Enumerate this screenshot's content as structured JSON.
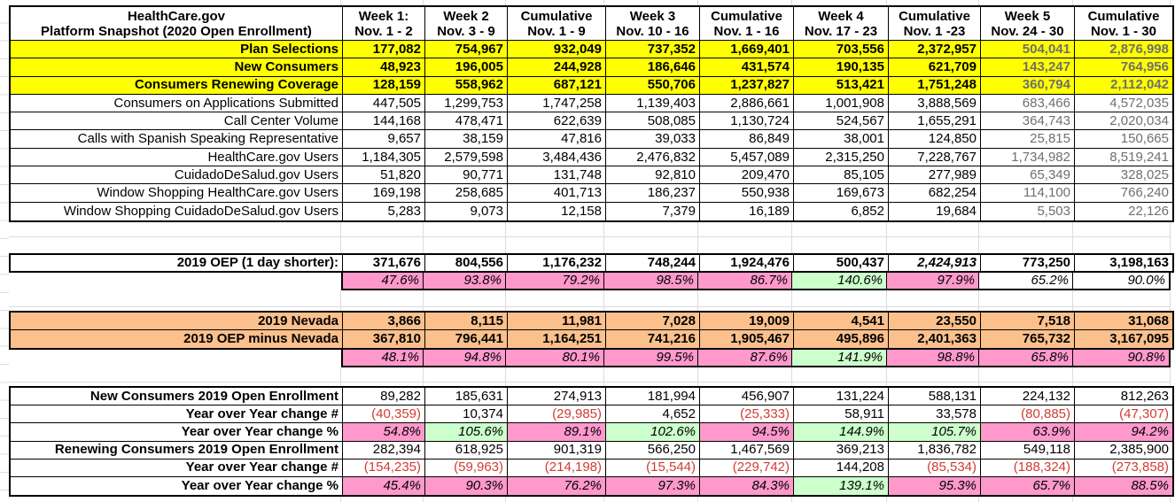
{
  "sheet": {
    "title": {
      "line1": "HealthCare.gov",
      "line2": "Platform Snapshot (2020 Open Enrollment)"
    },
    "columns": [
      {
        "line1": "Week 1:",
        "line2": "Nov. 1 - 2"
      },
      {
        "line1": "Week 2",
        "line2": "Nov. 3 - 9"
      },
      {
        "line1": "Cumulative",
        "line2": "Nov. 1 - 9"
      },
      {
        "line1": "Week 3",
        "line2": "Nov. 10 - 16"
      },
      {
        "line1": "Cumulative",
        "line2": "Nov. 1 - 16"
      },
      {
        "line1": "Week 4",
        "line2": "Nov. 17 - 23"
      },
      {
        "line1": "Cumulative",
        "line2": "Nov. 1 -23"
      },
      {
        "line1": "Week 5",
        "line2": "Nov. 24 - 30"
      },
      {
        "line1": "Cumulative",
        "line2": "Nov. 1 - 30"
      }
    ],
    "snapshot_rows": [
      {
        "label": "Plan Selections",
        "yellow": true,
        "bold": true,
        "values": [
          "177,082",
          "754,967",
          "932,049",
          "737,352",
          "1,669,401",
          "703,556",
          "2,372,957",
          "504,041",
          "2,876,998"
        ]
      },
      {
        "label": "New Consumers",
        "yellow": true,
        "bold": true,
        "values": [
          "48,923",
          "196,005",
          "244,928",
          "186,646",
          "431,574",
          "190,135",
          "621,709",
          "143,247",
          "764,956"
        ]
      },
      {
        "label": "Consumers Renewing Coverage",
        "yellow": true,
        "bold": true,
        "values": [
          "128,159",
          "558,962",
          "687,121",
          "550,706",
          "1,237,827",
          "513,421",
          "1,751,248",
          "360,794",
          "2,112,042"
        ]
      },
      {
        "label": "Consumers on Applications Submitted",
        "yellow": false,
        "bold": false,
        "values": [
          "447,505",
          "1,299,753",
          "1,747,258",
          "1,139,403",
          "2,886,661",
          "1,001,908",
          "3,888,569",
          "683,466",
          "4,572,035"
        ]
      },
      {
        "label": "Call Center Volume",
        "yellow": false,
        "bold": false,
        "values": [
          "144,168",
          "478,471",
          "622,639",
          "508,085",
          "1,130,724",
          "524,567",
          "1,655,291",
          "364,743",
          "2,020,034"
        ]
      },
      {
        "label": "Calls with Spanish Speaking Representative",
        "yellow": false,
        "bold": false,
        "values": [
          "9,657",
          "38,159",
          "47,816",
          "39,033",
          "86,849",
          "38,001",
          "124,850",
          "25,815",
          "150,665"
        ]
      },
      {
        "label": "HealthCare.gov Users",
        "yellow": false,
        "bold": false,
        "values": [
          "1,184,305",
          "2,579,598",
          "3,484,436",
          "2,476,832",
          "5,457,089",
          "2,315,250",
          "7,228,767",
          "1,734,982",
          "8,519,241"
        ]
      },
      {
        "label": "CuidadoDeSalud.gov Users",
        "yellow": false,
        "bold": false,
        "values": [
          "51,820",
          "90,771",
          "131,748",
          "92,810",
          "209,470",
          "85,105",
          "277,989",
          "65,349",
          "328,025"
        ]
      },
      {
        "label": "Window Shopping HealthCare.gov Users",
        "yellow": false,
        "bold": false,
        "values": [
          "169,198",
          "258,685",
          "401,713",
          "186,237",
          "550,938",
          "169,673",
          "682,254",
          "114,100",
          "766,240"
        ]
      },
      {
        "label": "Window Shopping CuidadoDeSalud.gov Users",
        "yellow": false,
        "bold": false,
        "values": [
          "5,283",
          "9,073",
          "12,158",
          "7,379",
          "16,189",
          "6,852",
          "19,684",
          "5,503",
          "22,126"
        ]
      }
    ],
    "oep_2019": {
      "label": "2019 OEP (1 day shorter):",
      "values": [
        "371,676",
        "804,556",
        "1,176,232",
        "748,244",
        "1,924,476",
        "500,437",
        "2,424,913",
        "773,250",
        "3,198,163"
      ],
      "italic_value_index": 6
    },
    "oep_2019_pct": {
      "values": [
        "47.6%",
        "93.8%",
        "79.2%",
        "98.5%",
        "86.7%",
        "140.6%",
        "97.9%",
        "65.2%",
        "90.0%"
      ],
      "fills": [
        "pink",
        "pink",
        "pink",
        "pink",
        "pink",
        "green",
        "pink",
        "none",
        "none"
      ]
    },
    "nevada_rows": [
      {
        "label": "2019 Nevada",
        "values": [
          "3,866",
          "8,115",
          "11,981",
          "7,028",
          "19,009",
          "4,541",
          "23,550",
          "7,518",
          "31,068"
        ]
      },
      {
        "label": "2019 OEP minus Nevada",
        "values": [
          "367,810",
          "796,441",
          "1,164,251",
          "741,216",
          "1,905,467",
          "495,896",
          "2,401,363",
          "765,732",
          "3,167,095"
        ]
      }
    ],
    "nevada_pct": {
      "values": [
        "48.1%",
        "94.8%",
        "80.1%",
        "99.5%",
        "87.6%",
        "141.9%",
        "98.8%",
        "65.8%",
        "90.8%"
      ],
      "fills": [
        "pink",
        "pink",
        "pink",
        "pink",
        "pink",
        "green",
        "pink",
        "pink",
        "pink"
      ]
    },
    "yoy_rows": [
      {
        "label": "New Consumers 2019 Open Enrollment",
        "type": "number",
        "values": [
          "89,282",
          "185,631",
          "274,913",
          "181,994",
          "456,907",
          "131,224",
          "588,131",
          "224,132",
          "812,263"
        ]
      },
      {
        "label": "Year over Year change #",
        "type": "delta",
        "values": [
          "(40,359)",
          "10,374",
          "(29,985)",
          "4,652",
          "(25,333)",
          "58,911",
          "33,578",
          "(80,885)",
          "(47,307)"
        ]
      },
      {
        "label": "Year over Year change %",
        "type": "pct",
        "values": [
          "54.8%",
          "105.6%",
          "89.1%",
          "102.6%",
          "94.5%",
          "144.9%",
          "105.7%",
          "63.9%",
          "94.2%"
        ],
        "fills": [
          "pink",
          "green",
          "pink",
          "green",
          "pink",
          "green",
          "green",
          "pink",
          "pink"
        ]
      },
      {
        "label": "Renewing Consumers 2019 Open Enrollment",
        "type": "number",
        "values": [
          "282,394",
          "618,925",
          "901,319",
          "566,250",
          "1,467,569",
          "369,213",
          "1,836,782",
          "549,118",
          "2,385,900"
        ]
      },
      {
        "label": "Year over Year change #",
        "type": "delta",
        "values": [
          "(154,235)",
          "(59,963)",
          "(214,198)",
          "(15,544)",
          "(229,742)",
          "144,208",
          "(85,534)",
          "(188,324)",
          "(273,858)"
        ]
      },
      {
        "label": "Year over Year change %",
        "type": "pct",
        "values": [
          "45.4%",
          "90.3%",
          "76.2%",
          "97.3%",
          "84.3%",
          "139.1%",
          "95.3%",
          "65.7%",
          "88.5%"
        ],
        "fills": [
          "pink",
          "pink",
          "pink",
          "pink",
          "pink",
          "green",
          "pink",
          "pink",
          "pink"
        ]
      }
    ],
    "colors": {
      "highlight_yellow": "#ffff00",
      "highlight_orange": "#fbc08c",
      "pct_below_pink": "#ff99cc",
      "pct_above_green": "#ccffcc",
      "negative_red": "#d23b32",
      "muted_gray_text": "#6f6f6f"
    }
  }
}
